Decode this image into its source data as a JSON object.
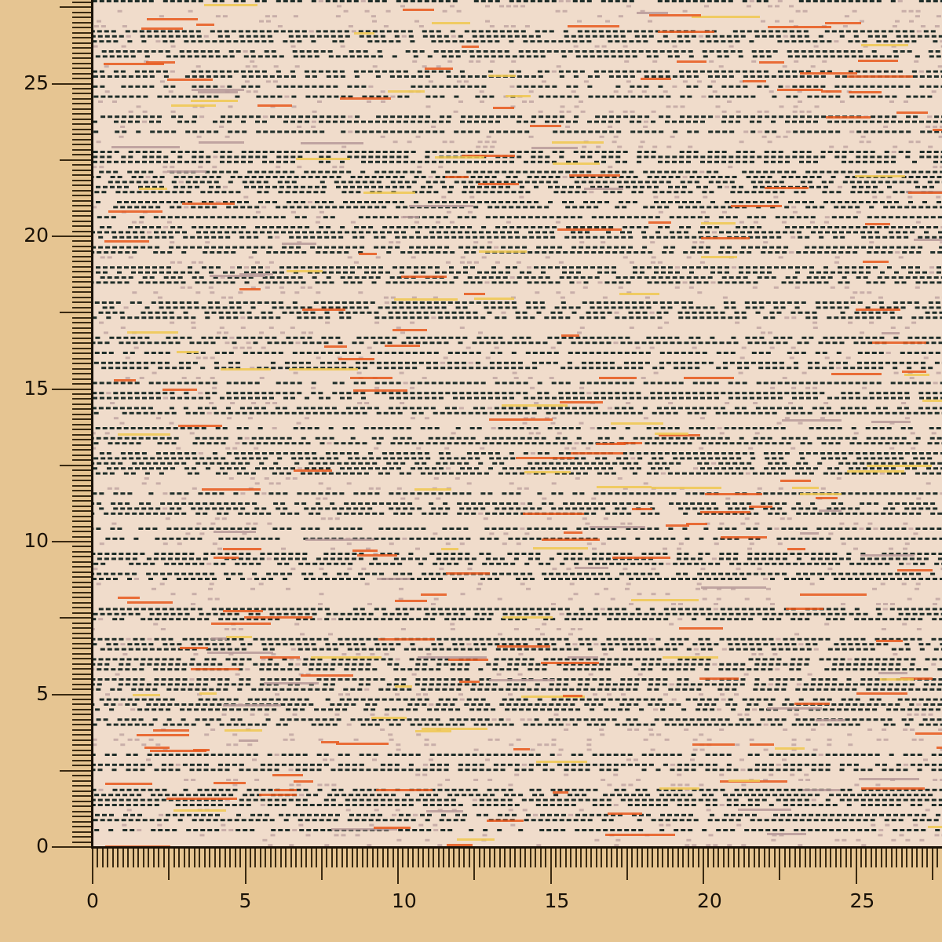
{
  "swatch": {
    "colors": {
      "base": "#f0dccb",
      "dark": "#1f2e2a",
      "orange": "#e8581c",
      "yellow": "#f0c850",
      "mauve": "#b79a9a",
      "background": "#e6c592"
    }
  },
  "ruler": {
    "x_labels": [
      "0",
      "5",
      "10",
      "15",
      "20",
      "25"
    ],
    "y_labels": [
      "0",
      "5",
      "10",
      "15",
      "20",
      "25"
    ],
    "ticks_per_unit": 6
  }
}
